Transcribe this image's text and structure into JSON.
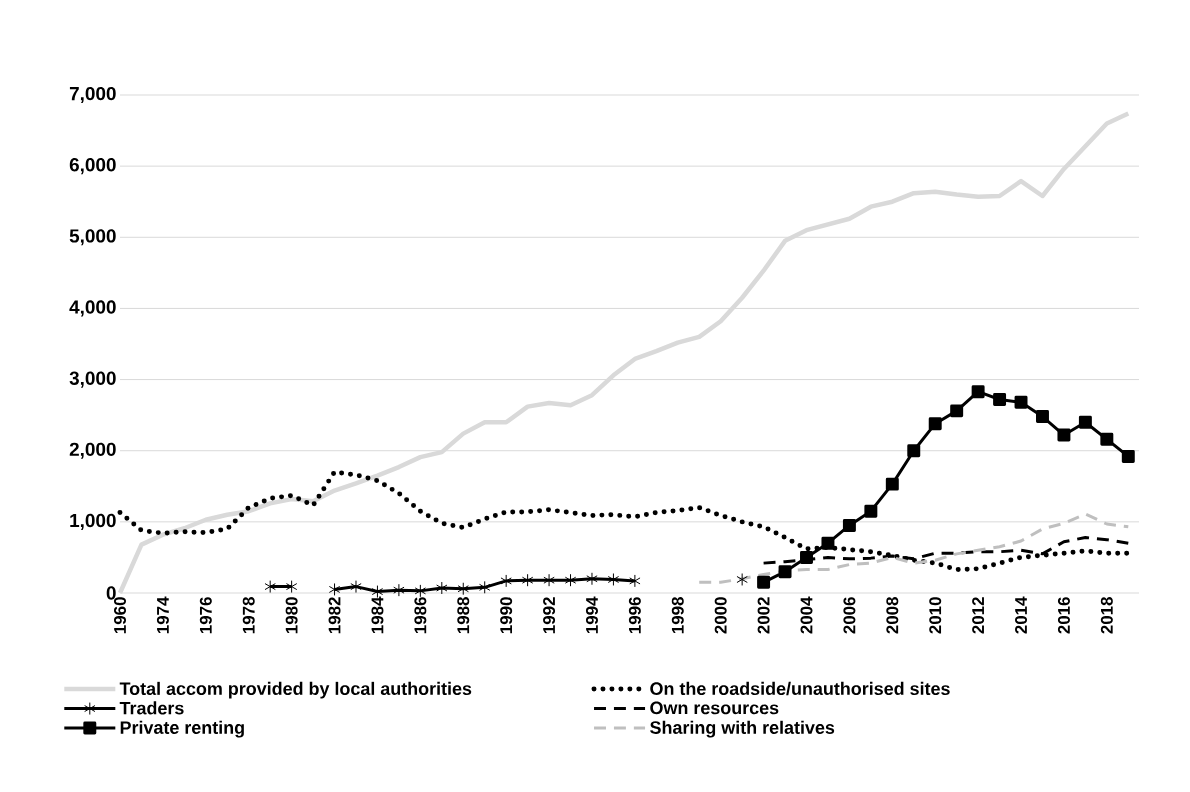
{
  "chart_data": {
    "type": "line",
    "categories": [
      "1960",
      null,
      "1974",
      null,
      "1976",
      null,
      "1978",
      null,
      "1980",
      null,
      "1982",
      null,
      "1984",
      null,
      "1986",
      null,
      "1988",
      null,
      "1990",
      null,
      "1992",
      null,
      "1994",
      null,
      "1996",
      null,
      "1998",
      null,
      "2000",
      null,
      "2002",
      null,
      "2004",
      null,
      "2006",
      null,
      "2008",
      null,
      "2010",
      null,
      "2012",
      null,
      "2014",
      null,
      "2016",
      null,
      "2018",
      null
    ],
    "series": [
      {
        "name": "Total accom provided by local authorities",
        "color": "#d9d9d9",
        "line_style": "solid",
        "marker": "none",
        "values": [
          0,
          680,
          820,
          910,
          1030,
          1100,
          1150,
          1260,
          1320,
          1290,
          1440,
          1540,
          1650,
          1770,
          1910,
          1980,
          2240,
          2400,
          2400,
          2620,
          2670,
          2640,
          2780,
          3060,
          3290,
          3400,
          3520,
          3600,
          3820,
          4150,
          4530,
          4950,
          5100,
          5180,
          5260,
          5430,
          5500,
          5620,
          5640,
          5600,
          5570,
          5580,
          5790,
          5580,
          5960,
          6280,
          6600,
          6740
        ]
      },
      {
        "name": "On the roadside/unauthorised sites",
        "color": "#000000",
        "line_style": "dotted",
        "marker": "none",
        "values": [
          1130,
          880,
          840,
          860,
          850,
          900,
          1200,
          1330,
          1370,
          1230,
          1700,
          1660,
          1580,
          1400,
          1150,
          980,
          920,
          1040,
          1140,
          1140,
          1170,
          1130,
          1090,
          1100,
          1070,
          1130,
          1160,
          1200,
          1090,
          1000,
          930,
          780,
          620,
          640,
          610,
          580,
          530,
          460,
          420,
          330,
          340,
          420,
          500,
          530,
          560,
          590,
          560,
          560
        ]
      },
      {
        "name": "Traders",
        "color": "#000000",
        "line_style": "solid",
        "marker": "cross",
        "values": [
          null,
          null,
          null,
          null,
          null,
          null,
          null,
          90,
          90,
          null,
          50,
          90,
          20,
          40,
          30,
          70,
          60,
          80,
          170,
          180,
          180,
          180,
          200,
          190,
          170,
          null,
          null,
          null,
          null,
          190,
          null,
          null,
          null,
          null,
          null,
          null,
          null,
          null,
          null,
          null,
          null,
          null,
          null,
          null,
          null,
          null,
          null,
          null
        ]
      },
      {
        "name": "Own resources",
        "color": "#000000",
        "line_style": "dashed",
        "marker": "none",
        "values": [
          null,
          null,
          null,
          null,
          null,
          null,
          null,
          null,
          null,
          null,
          null,
          null,
          null,
          null,
          null,
          null,
          null,
          null,
          null,
          null,
          null,
          null,
          null,
          null,
          null,
          null,
          null,
          null,
          null,
          null,
          420,
          440,
          470,
          500,
          480,
          490,
          520,
          480,
          560,
          560,
          580,
          580,
          600,
          550,
          720,
          780,
          750,
          700
        ]
      },
      {
        "name": "Private renting",
        "color": "#000000",
        "line_style": "solid",
        "marker": "square",
        "values": [
          null,
          null,
          null,
          null,
          null,
          null,
          null,
          null,
          null,
          null,
          null,
          null,
          null,
          null,
          null,
          null,
          null,
          null,
          null,
          null,
          null,
          null,
          null,
          null,
          null,
          null,
          null,
          null,
          null,
          null,
          150,
          300,
          500,
          700,
          950,
          1150,
          1530,
          2000,
          2380,
          2560,
          2830,
          2720,
          2680,
          2480,
          2220,
          2400,
          2160,
          1920
        ]
      },
      {
        "name": "Sharing with relatives",
        "color": "#bfbfbf",
        "line_style": "dashed",
        "marker": "none",
        "values": [
          null,
          null,
          null,
          null,
          null,
          null,
          null,
          null,
          null,
          null,
          null,
          null,
          null,
          null,
          null,
          null,
          null,
          null,
          null,
          null,
          null,
          null,
          null,
          null,
          null,
          null,
          null,
          150,
          150,
          200,
          260,
          310,
          330,
          330,
          400,
          420,
          500,
          420,
          460,
          550,
          600,
          650,
          730,
          900,
          980,
          1110,
          970,
          930
        ]
      }
    ],
    "ylim": [
      0,
      7000
    ],
    "yticks": [
      0,
      {
        "value": 1000,
        "label": "1,000"
      },
      {
        "value": 2000,
        "label": "2,000"
      },
      {
        "value": 3000,
        "label": "3,000"
      },
      {
        "value": 4000,
        "label": "4,000"
      },
      {
        "value": 5000,
        "label": "5,000"
      },
      {
        "value": 6000,
        "label": "6,000"
      },
      {
        "value": 7000,
        "label": "7,000"
      }
    ],
    "grid": "y",
    "legend": "bottom"
  }
}
